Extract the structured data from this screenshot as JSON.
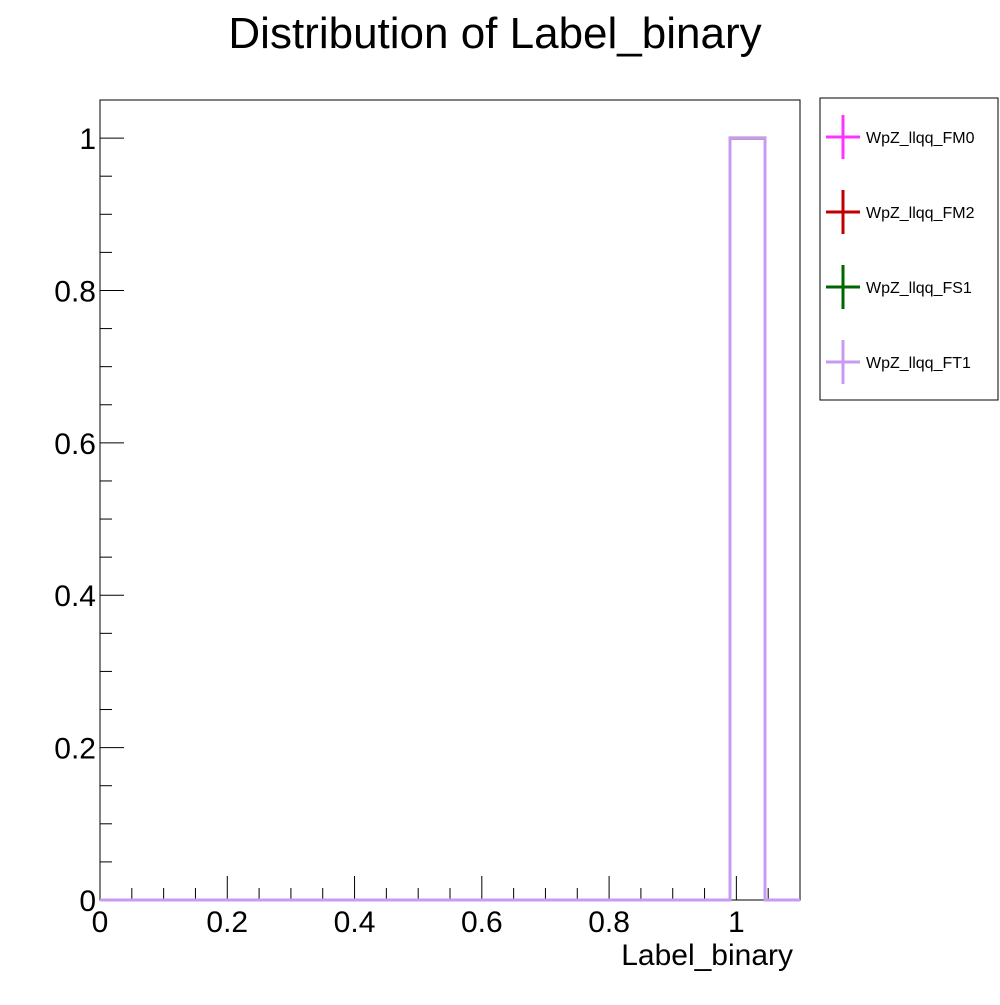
{
  "chart_data": {
    "type": "histogram",
    "title": "Distribution of Label_binary",
    "xlabel": "Label_binary",
    "ylabel": "",
    "xlim": [
      0,
      1.1
    ],
    "ylim": [
      0,
      1.05
    ],
    "x_ticks": [
      0,
      0.2,
      0.4,
      0.6,
      0.8,
      1
    ],
    "x_tick_labels": [
      "0",
      "0.2",
      "0.4",
      "0.6",
      "0.8",
      "1"
    ],
    "y_ticks": [
      0,
      0.2,
      0.4,
      0.6,
      0.8,
      1
    ],
    "y_tick_labels": [
      "0",
      "0.2",
      "0.4",
      "0.6",
      "0.8",
      "1"
    ],
    "grid": false,
    "legend_position": "outside-right-top",
    "bin_edges": [
      0.99,
      1.045
    ],
    "series": [
      {
        "name": "WpZ_llqq_FM0",
        "color": "#ff33ff",
        "values": [
          1
        ]
      },
      {
        "name": "WpZ_llqq_FM2",
        "color": "#c00000",
        "values": [
          1
        ]
      },
      {
        "name": "WpZ_llqq_FS1",
        "color": "#006600",
        "values": [
          1
        ]
      },
      {
        "name": "WpZ_llqq_FT1",
        "color": "#c89bf0",
        "values": [
          1
        ]
      }
    ]
  }
}
